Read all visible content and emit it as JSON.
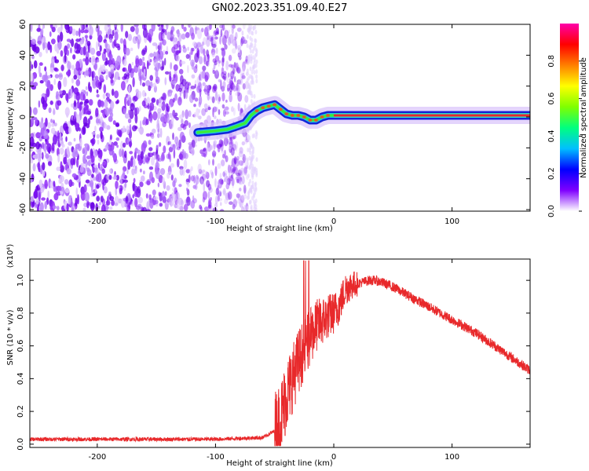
{
  "title": "GN02.2023.351.09.40.E27",
  "chart_data": [
    {
      "type": "heatmap",
      "xlabel": "Height of straight line (km)",
      "ylabel": "Frequency (Hz)",
      "xlim": [
        -257,
        166
      ],
      "ylim": [
        -61,
        60
      ],
      "xticks": [
        -200,
        -100,
        0,
        100
      ],
      "yticks": [
        60,
        40,
        20,
        0,
        -20,
        -40,
        -60
      ],
      "colorbar": {
        "label": "Normalized spectral amplitude",
        "range": [
          0,
          1
        ],
        "ticks": [
          "0.0",
          "0.2",
          "0.4",
          "0.6",
          "0.8"
        ],
        "colormap": [
          "#ffffff",
          "#7f00ff",
          "#0000ff",
          "#00bfff",
          "#00ff7f",
          "#7fff00",
          "#ffff00",
          "#ff7f00",
          "#ff0000",
          "#ff00aa"
        ]
      },
      "noise_region_x": [
        -257,
        -73
      ],
      "ridge": {
        "x": [
          -115,
          -100,
          -90,
          -82,
          -75,
          -70,
          -65,
          -60,
          -55,
          -50,
          -45,
          -40,
          -35,
          -30,
          -25,
          -20,
          -15,
          -10,
          -5,
          0,
          50,
          100,
          166
        ],
        "y": [
          -10,
          -9,
          -8,
          -6,
          -4,
          1,
          4,
          6,
          7,
          8,
          5,
          2,
          1,
          1,
          0,
          -2,
          -2,
          0,
          1,
          1,
          1,
          1,
          1
        ]
      },
      "grid": false
    },
    {
      "type": "line",
      "xlabel": "Height of straight line (km)",
      "ylabel": "SNR (10 * v/v)",
      "y_multiplier": "(x10⁴)",
      "xlim": [
        -257,
        166
      ],
      "ylim": [
        -0.02,
        1.13
      ],
      "xticks": [
        -200,
        -100,
        0,
        100
      ],
      "yticks": [
        "0.0",
        "0.2",
        "0.4",
        "0.6",
        "0.8",
        "1.0"
      ],
      "color": "#e8292b",
      "series": [
        {
          "x": [
            -257,
            -200,
            -150,
            -100,
            -60,
            -50,
            -45,
            -40,
            -35,
            -30,
            -25,
            -20,
            -15,
            -10,
            -5,
            0,
            5,
            10,
            15,
            20,
            25,
            30,
            35,
            40,
            50,
            60,
            70,
            80,
            90,
            100,
            110,
            120,
            130,
            140,
            150,
            160,
            166
          ],
          "y": [
            0.03,
            0.03,
            0.03,
            0.03,
            0.04,
            0.08,
            0.15,
            0.3,
            0.4,
            0.5,
            0.58,
            0.65,
            0.72,
            0.75,
            0.78,
            0.8,
            0.85,
            0.95,
            0.97,
            0.98,
            0.99,
            1.0,
            1.0,
            0.99,
            0.96,
            0.92,
            0.88,
            0.84,
            0.8,
            0.76,
            0.72,
            0.68,
            0.63,
            0.58,
            0.53,
            0.48,
            0.45
          ]
        }
      ],
      "grid": false
    }
  ]
}
